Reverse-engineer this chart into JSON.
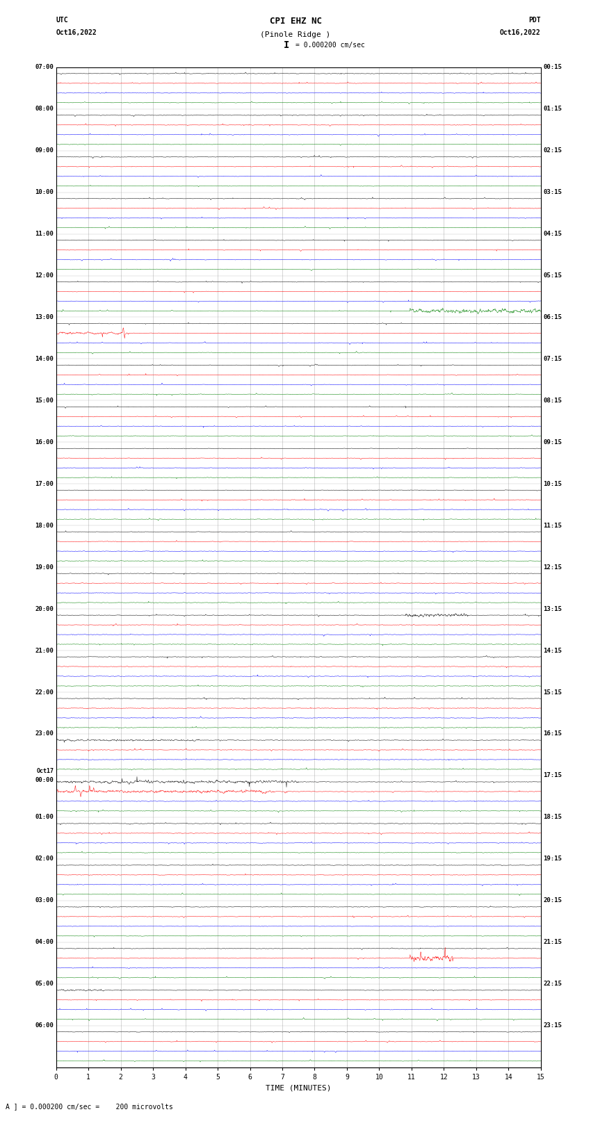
{
  "title_line1": "CPI EHZ NC",
  "title_line2": "(Pinole Ridge )",
  "title_scale": "I = 0.000200 cm/sec",
  "label_utc": "UTC",
  "label_utc_date": "Oct16,2022",
  "label_pdt": "PDT",
  "label_pdt_date": "Oct16,2022",
  "xlabel": "TIME (MINUTES)",
  "footer": "A ] = 0.000200 cm/sec =    200 microvolts",
  "xlim": [
    0,
    15
  ],
  "xticks": [
    0,
    1,
    2,
    3,
    4,
    5,
    6,
    7,
    8,
    9,
    10,
    11,
    12,
    13,
    14,
    15
  ],
  "left_times": [
    "07:00",
    "08:00",
    "09:00",
    "10:00",
    "11:00",
    "12:00",
    "13:00",
    "14:00",
    "15:00",
    "16:00",
    "17:00",
    "18:00",
    "19:00",
    "20:00",
    "21:00",
    "22:00",
    "23:00",
    "Oct17\n00:00",
    "01:00",
    "02:00",
    "03:00",
    "04:00",
    "05:00",
    "06:00"
  ],
  "right_times": [
    "00:15",
    "01:15",
    "02:15",
    "03:15",
    "04:15",
    "05:15",
    "06:15",
    "07:15",
    "08:15",
    "09:15",
    "10:15",
    "11:15",
    "12:15",
    "13:15",
    "14:15",
    "15:15",
    "16:15",
    "17:15",
    "18:15",
    "19:15",
    "20:15",
    "21:15",
    "22:15",
    "23:15"
  ],
  "n_rows": 24,
  "traces_per_row": 4,
  "colors": [
    "black",
    "red",
    "blue",
    "green"
  ],
  "bg_color": "#ffffff",
  "grid_color": "#888888",
  "base_noise_amp": 0.03,
  "spike_prob": 0.003,
  "n_samples": 1800
}
